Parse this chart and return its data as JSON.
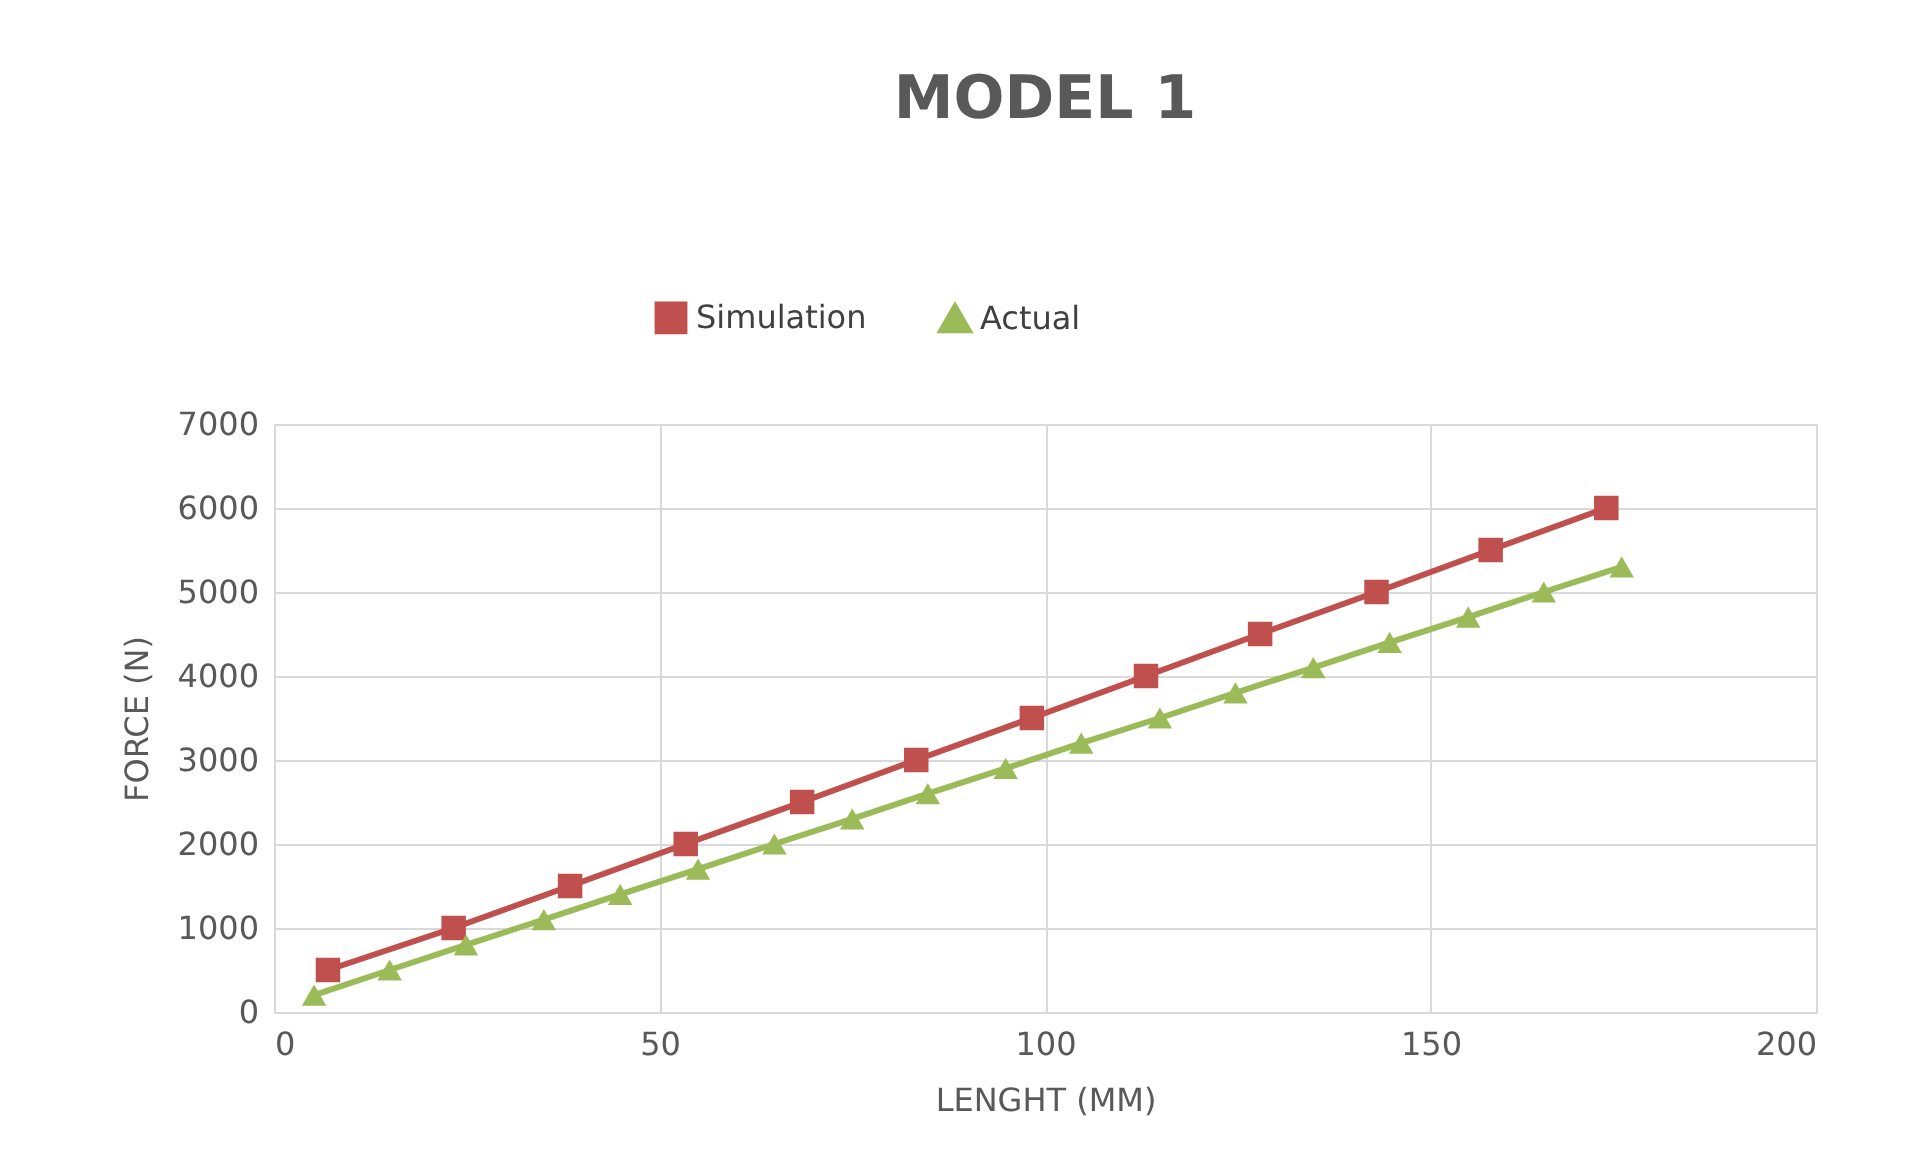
{
  "chart_data": {
    "type": "line",
    "title": "MODEL 1",
    "xlabel": "LENGHT (MM)",
    "ylabel": "FORCE (N)",
    "xlim": [
      0,
      200
    ],
    "xticks": [
      0,
      50,
      100,
      150,
      200
    ],
    "ylim": [
      0,
      7000
    ],
    "yticks": [
      0,
      1000,
      2000,
      3000,
      4000,
      5000,
      6000,
      7000
    ],
    "grid": true,
    "legend": "top",
    "line_style": "solid",
    "series": [
      {
        "name": "Simulation",
        "color": "#c0504d",
        "marker": "square",
        "x": [
          7.0,
          23.3,
          38.4,
          53.4,
          68.5,
          83.3,
          98.3,
          113.1,
          127.9,
          143.0,
          157.8,
          172.8
        ],
        "values": [
          500,
          1000,
          1500,
          2000,
          2500,
          3000,
          3500,
          4000,
          4500,
          5000,
          5500,
          6000
        ]
      },
      {
        "name": "Actual",
        "color": "#9bbb59",
        "marker": "triangle",
        "x": [
          5.2,
          15.0,
          24.9,
          35.0,
          44.9,
          55.0,
          64.9,
          75.0,
          84.8,
          94.9,
          104.7,
          114.9,
          124.7,
          134.8,
          144.7,
          154.9,
          164.7,
          174.8
        ],
        "values": [
          200,
          500,
          800,
          1100,
          1400,
          1700,
          2000,
          2300,
          2600,
          2900,
          3200,
          3500,
          3800,
          4100,
          4400,
          4700,
          5000,
          5300
        ]
      }
    ]
  }
}
